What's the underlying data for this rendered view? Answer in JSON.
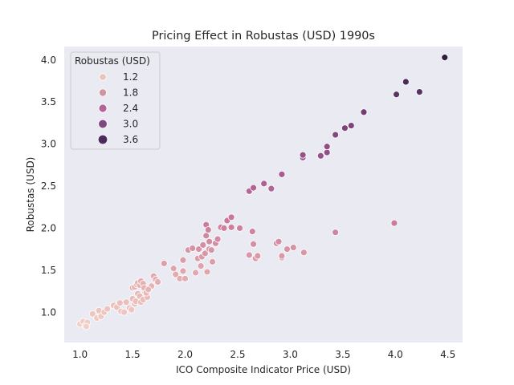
{
  "chart_data": {
    "type": "scatter",
    "title": "Pricing Effect in Robustas (USD) 1990s",
    "xlabel": "ICO Composite Indicator Price (USD)",
    "ylabel": "Robustas (USD)",
    "xlim": [
      0.85,
      4.64
    ],
    "ylim": [
      0.64,
      4.16
    ],
    "xticks": [
      "1.0",
      "1.5",
      "2.0",
      "2.5",
      "3.0",
      "3.5",
      "4.0",
      "4.5"
    ],
    "yticks": [
      "1.0",
      "1.5",
      "2.0",
      "2.5",
      "3.0",
      "3.5",
      "4.0"
    ],
    "grid": false,
    "background": "#eaeaf2",
    "legend": {
      "title": "Robustas (USD)",
      "placement": "top-left",
      "entries": [
        {
          "label": "1.2",
          "value": 1.2,
          "color": "#ebc1be"
        },
        {
          "label": "1.8",
          "value": 1.8,
          "color": "#d291a4"
        },
        {
          "label": "2.4",
          "value": 2.4,
          "color": "#b06595"
        },
        {
          "label": "3.0",
          "value": 3.0,
          "color": "#824780"
        },
        {
          "label": "3.6",
          "value": 3.6,
          "color": "#4c2a5a"
        }
      ]
    },
    "hue_scale": {
      "min": 0.8,
      "max": 4.04,
      "stops": [
        "#f3d2c8",
        "#e3a9ae",
        "#c97a9a",
        "#a05590",
        "#703d72",
        "#2d1e3e"
      ]
    },
    "points": [
      {
        "x": 1.0,
        "y": 0.86
      },
      {
        "x": 1.03,
        "y": 0.89
      },
      {
        "x": 1.05,
        "y": 0.84
      },
      {
        "x": 1.07,
        "y": 0.88
      },
      {
        "x": 1.06,
        "y": 0.83
      },
      {
        "x": 1.12,
        "y": 0.98
      },
      {
        "x": 1.16,
        "y": 0.93
      },
      {
        "x": 1.18,
        "y": 1.02
      },
      {
        "x": 1.2,
        "y": 0.95
      },
      {
        "x": 1.23,
        "y": 1.0
      },
      {
        "x": 1.26,
        "y": 1.04
      },
      {
        "x": 1.32,
        "y": 1.08
      },
      {
        "x": 1.35,
        "y": 1.06
      },
      {
        "x": 1.38,
        "y": 1.11
      },
      {
        "x": 1.39,
        "y": 1.01
      },
      {
        "x": 1.42,
        "y": 1.0
      },
      {
        "x": 1.44,
        "y": 1.12
      },
      {
        "x": 1.47,
        "y": 1.05
      },
      {
        "x": 1.49,
        "y": 1.03
      },
      {
        "x": 1.5,
        "y": 1.16
      },
      {
        "x": 1.52,
        "y": 1.1
      },
      {
        "x": 1.53,
        "y": 1.13
      },
      {
        "x": 1.55,
        "y": 1.22
      },
      {
        "x": 1.57,
        "y": 1.19
      },
      {
        "x": 1.58,
        "y": 1.12
      },
      {
        "x": 1.6,
        "y": 1.15
      },
      {
        "x": 1.62,
        "y": 1.24
      },
      {
        "x": 1.64,
        "y": 1.18
      },
      {
        "x": 1.66,
        "y": 1.28
      },
      {
        "x": 1.68,
        "y": 1.31
      },
      {
        "x": 1.5,
        "y": 1.29
      },
      {
        "x": 1.52,
        "y": 1.3
      },
      {
        "x": 1.54,
        "y": 1.33
      },
      {
        "x": 1.55,
        "y": 1.35
      },
      {
        "x": 1.57,
        "y": 1.32
      },
      {
        "x": 1.58,
        "y": 1.37
      },
      {
        "x": 1.6,
        "y": 1.34
      },
      {
        "x": 1.61,
        "y": 1.29
      },
      {
        "x": 1.63,
        "y": 1.23
      },
      {
        "x": 1.65,
        "y": 1.27
      },
      {
        "x": 1.7,
        "y": 1.43
      },
      {
        "x": 1.72,
        "y": 1.39
      },
      {
        "x": 1.74,
        "y": 1.36
      },
      {
        "x": 1.8,
        "y": 1.58
      },
      {
        "x": 1.89,
        "y": 1.52
      },
      {
        "x": 1.91,
        "y": 1.45
      },
      {
        "x": 1.95,
        "y": 1.4
      },
      {
        "x": 1.98,
        "y": 1.49
      },
      {
        "x": 1.98,
        "y": 1.62
      },
      {
        "x": 2.0,
        "y": 1.4
      },
      {
        "x": 2.03,
        "y": 1.74
      },
      {
        "x": 2.07,
        "y": 1.76
      },
      {
        "x": 2.1,
        "y": 1.47
      },
      {
        "x": 2.12,
        "y": 1.64
      },
      {
        "x": 2.13,
        "y": 1.75
      },
      {
        "x": 2.15,
        "y": 1.55
      },
      {
        "x": 2.16,
        "y": 1.66
      },
      {
        "x": 2.17,
        "y": 1.8
      },
      {
        "x": 2.19,
        "y": 1.7
      },
      {
        "x": 2.2,
        "y": 1.91
      },
      {
        "x": 2.2,
        "y": 2.04
      },
      {
        "x": 2.21,
        "y": 1.48
      },
      {
        "x": 2.22,
        "y": 1.98
      },
      {
        "x": 2.23,
        "y": 1.84
      },
      {
        "x": 2.23,
        "y": 1.75
      },
      {
        "x": 2.25,
        "y": 1.74
      },
      {
        "x": 2.26,
        "y": 1.6
      },
      {
        "x": 2.29,
        "y": 1.82
      },
      {
        "x": 2.31,
        "y": 1.87
      },
      {
        "x": 2.34,
        "y": 2.01
      },
      {
        "x": 2.37,
        "y": 2.0
      },
      {
        "x": 2.4,
        "y": 2.09
      },
      {
        "x": 2.44,
        "y": 2.01
      },
      {
        "x": 2.44,
        "y": 2.13
      },
      {
        "x": 2.52,
        "y": 2.0
      },
      {
        "x": 2.61,
        "y": 1.68
      },
      {
        "x": 2.64,
        "y": 1.96
      },
      {
        "x": 2.65,
        "y": 1.81
      },
      {
        "x": 2.67,
        "y": 1.64
      },
      {
        "x": 2.69,
        "y": 1.67
      },
      {
        "x": 2.87,
        "y": 1.82
      },
      {
        "x": 2.89,
        "y": 1.84
      },
      {
        "x": 2.92,
        "y": 1.65
      },
      {
        "x": 2.92,
        "y": 1.67
      },
      {
        "x": 2.97,
        "y": 1.75
      },
      {
        "x": 3.03,
        "y": 1.77
      },
      {
        "x": 3.13,
        "y": 1.71
      },
      {
        "x": 3.43,
        "y": 1.95
      },
      {
        "x": 3.99,
        "y": 2.06
      },
      {
        "x": 2.61,
        "y": 2.44
      },
      {
        "x": 2.65,
        "y": 2.48
      },
      {
        "x": 2.75,
        "y": 2.53
      },
      {
        "x": 2.82,
        "y": 2.47
      },
      {
        "x": 2.92,
        "y": 2.64
      },
      {
        "x": 3.12,
        "y": 2.84
      },
      {
        "x": 3.12,
        "y": 2.87
      },
      {
        "x": 3.29,
        "y": 2.86
      },
      {
        "x": 3.35,
        "y": 2.9
      },
      {
        "x": 3.35,
        "y": 2.97
      },
      {
        "x": 3.43,
        "y": 3.11
      },
      {
        "x": 3.52,
        "y": 3.19
      },
      {
        "x": 3.58,
        "y": 3.22
      },
      {
        "x": 3.7,
        "y": 3.38
      },
      {
        "x": 4.01,
        "y": 3.59
      },
      {
        "x": 4.1,
        "y": 3.74
      },
      {
        "x": 4.23,
        "y": 3.62
      },
      {
        "x": 4.47,
        "y": 4.03
      }
    ]
  }
}
